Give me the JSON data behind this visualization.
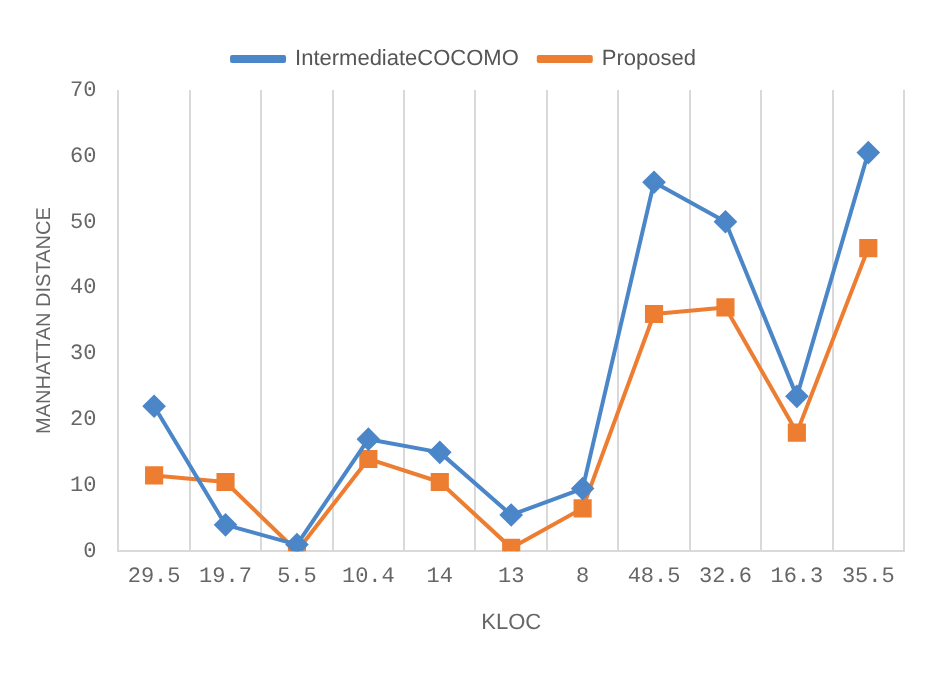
{
  "chart_data": {
    "type": "line",
    "xlabel": "KLOC",
    "ylabel": "MANHATTAN DISTANCE",
    "categories": [
      "29.5",
      "19.7",
      "5.5",
      "10.4",
      "14",
      "13",
      "8",
      "48.5",
      "32.6",
      "16.3",
      "35.5"
    ],
    "series": [
      {
        "name": "IntermediateCOCOMO",
        "color": "#4a86c8",
        "marker": "diamond",
        "values": [
          22,
          4,
          1,
          17,
          15,
          5.5,
          9.5,
          56,
          50,
          23.5,
          60.5
        ]
      },
      {
        "name": "Proposed",
        "color": "#ed7d31",
        "marker": "square",
        "values": [
          11.5,
          10.5,
          0,
          14,
          10.5,
          0.5,
          6.5,
          36,
          37,
          18,
          46
        ]
      }
    ],
    "ylim": [
      0,
      70
    ],
    "yticks": [
      0,
      10,
      20,
      30,
      40,
      50,
      60,
      70
    ],
    "grid": "x",
    "legend": "top",
    "line_style": "solid"
  }
}
